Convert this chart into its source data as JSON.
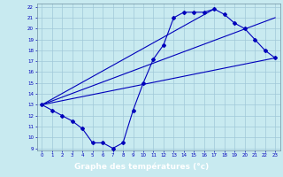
{
  "xlabel": "Graphe des températures (°c)",
  "bg_color": "#c8eaf0",
  "xlabel_bg": "#2020aa",
  "xlabel_fg": "#ffffff",
  "line_color": "#0000bb",
  "grid_color": "#a0c8d8",
  "xlim": [
    -0.5,
    23.5
  ],
  "ylim": [
    8.8,
    22.3
  ],
  "xticks": [
    0,
    1,
    2,
    3,
    4,
    5,
    6,
    7,
    8,
    9,
    10,
    11,
    12,
    13,
    14,
    15,
    16,
    17,
    18,
    19,
    20,
    21,
    22,
    23
  ],
  "yticks": [
    9,
    10,
    11,
    12,
    13,
    14,
    15,
    16,
    17,
    18,
    19,
    20,
    21,
    22
  ],
  "main_curve": [
    [
      0,
      13.0
    ],
    [
      1,
      12.5
    ],
    [
      2,
      12.0
    ],
    [
      3,
      11.5
    ],
    [
      4,
      10.8
    ],
    [
      5,
      9.5
    ],
    [
      6,
      9.5
    ],
    [
      7,
      9.0
    ],
    [
      8,
      9.5
    ],
    [
      9,
      12.5
    ],
    [
      10,
      15.0
    ],
    [
      11,
      17.2
    ],
    [
      12,
      18.5
    ],
    [
      13,
      21.0
    ],
    [
      14,
      21.5
    ],
    [
      15,
      21.5
    ],
    [
      16,
      21.5
    ],
    [
      17,
      21.8
    ],
    [
      18,
      21.3
    ],
    [
      19,
      20.5
    ],
    [
      20,
      20.0
    ],
    [
      21,
      19.0
    ],
    [
      22,
      18.0
    ],
    [
      23,
      17.3
    ]
  ],
  "reg_line1": [
    [
      0,
      13.0
    ],
    [
      23,
      17.3
    ]
  ],
  "reg_line2": [
    [
      0,
      13.0
    ],
    [
      23,
      21.0
    ]
  ],
  "reg_line3": [
    [
      0,
      13.0
    ],
    [
      17,
      21.8
    ]
  ]
}
